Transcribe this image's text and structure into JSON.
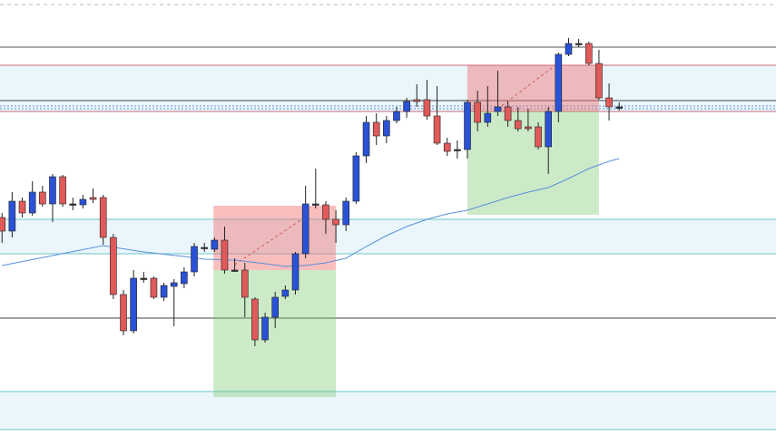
{
  "chart_data": {
    "type": "candlestick",
    "xlim": [
      -0.2,
      76.5
    ],
    "ylim": [
      0,
      480
    ],
    "up_color": "#2a52d6",
    "down_color": "#e05a5a",
    "flat_color": "#333333",
    "series": [
      {
        "name": "open",
        "values": [
          240,
          225,
          258,
          245,
          268,
          255,
          285,
          255,
          254,
          262,
          262,
          218,
          155,
          115,
          173,
          173,
          152,
          164,
          167,
          180,
          207,
          205,
          215,
          182,
          182,
          150,
          105,
          130,
          153,
          160,
          200,
          255,
          254,
          238,
          232,
          258,
          308,
          345,
          330,
          347,
          357,
          370,
          370,
          352,
          322,
          315,
          315,
          367,
          345,
          357,
          362,
          347,
          340,
          340,
          318,
          357,
          420,
          432,
          432,
          410,
          372,
          362
        ]
      },
      {
        "name": "high",
        "values": [
          245,
          268,
          262,
          280,
          275,
          288,
          287,
          262,
          265,
          272,
          265,
          222,
          160,
          182,
          180,
          175,
          168,
          172,
          185,
          212,
          212,
          218,
          230,
          195,
          190,
          152,
          135,
          158,
          165,
          202,
          275,
          294,
          258,
          248,
          262,
          312,
          352,
          355,
          352,
          362,
          372,
          387,
          392,
          385,
          328,
          325,
          370,
          380,
          385,
          402,
          368,
          362,
          360,
          345,
          362,
          422,
          438,
          437,
          434,
          425,
          388,
          367
        ]
      },
      {
        "name": "low",
        "values": [
          212,
          218,
          240,
          242,
          252,
          235,
          252,
          248,
          250,
          256,
          210,
          150,
          110,
          112,
          168,
          150,
          148,
          120,
          162,
          175,
          202,
          202,
          178,
          180,
          130,
          98,
          102,
          118,
          150,
          155,
          195,
          250,
          222,
          212,
          225,
          255,
          300,
          320,
          322,
          344,
          350,
          362,
          348,
          320,
          308,
          305,
          305,
          335,
          340,
          352,
          340,
          335,
          335,
          315,
          288,
          345,
          418,
          428,
          408,
          370,
          347,
          358
        ]
      },
      {
        "name": "close",
        "values": [
          225,
          258,
          245,
          268,
          255,
          285,
          255,
          254,
          260,
          260,
          218,
          155,
          115,
          173,
          172,
          152,
          165,
          168,
          180,
          208,
          206,
          215,
          182,
          182,
          152,
          105,
          130,
          152,
          160,
          200,
          255,
          254,
          238,
          232,
          258,
          308,
          345,
          330,
          347,
          357,
          368,
          368,
          352,
          322,
          313,
          314,
          367,
          345,
          355,
          362,
          347,
          338,
          338,
          318,
          357,
          420,
          432,
          431,
          410,
          372,
          362,
          361
        ]
      }
    ],
    "ma": {
      "color": "#5b8fd9",
      "x": [
        0,
        5,
        10,
        14,
        18,
        20,
        23,
        26,
        28,
        30,
        32,
        34,
        36,
        38,
        40,
        42,
        44,
        46,
        48,
        50,
        52,
        54,
        56,
        58,
        60,
        61
      ],
      "values": [
        187,
        198,
        209,
        202,
        197,
        194,
        193,
        189,
        186,
        187,
        190,
        195,
        208,
        220,
        230,
        238,
        244,
        248,
        255,
        262,
        268,
        273,
        283,
        294,
        302,
        305
      ]
    },
    "bands": [
      {
        "color": "#eaf6fc",
        "range": [
          357,
          408
        ]
      },
      {
        "color": "#eaf6fc",
        "range": [
          200,
          238
        ]
      },
      {
        "color": "#eaf6fc",
        "range": [
          6,
          48
        ]
      }
    ],
    "levels": [
      {
        "value": 475,
        "color": "#bbbbbb",
        "dash": "4 4"
      },
      {
        "value": 428,
        "color": "#555555",
        "dash": "none"
      },
      {
        "value": 408,
        "color": "#c86a7a",
        "dash": "none"
      },
      {
        "value": 369,
        "color": "#444444",
        "dash": "none"
      },
      {
        "value": 363,
        "color": "#5b8fd9",
        "dash": "2 2"
      },
      {
        "value": 360,
        "color": "#5b8fd9",
        "dash": "2 2"
      },
      {
        "value": 357,
        "color": "#c86a7a",
        "dash": "none"
      },
      {
        "value": 238,
        "color": "#6cc6c6",
        "dash": "none"
      },
      {
        "value": 200,
        "color": "#6cc6c6",
        "dash": "none"
      },
      {
        "value": 129,
        "color": "#444444",
        "dash": "none"
      },
      {
        "value": 48,
        "color": "#6cc6c6",
        "dash": "none"
      },
      {
        "value": 6,
        "color": "#6cc6c6",
        "dash": "none"
      }
    ],
    "positions": [
      {
        "x": [
          20.9,
          33.0
        ],
        "entry": 182,
        "stop": 253,
        "target": 42,
        "path_x": [
          23.0,
          30.3
        ],
        "path_y": [
          188,
          243
        ]
      },
      {
        "x": [
          46.0,
          59.0
        ],
        "entry": 357,
        "stop": 408,
        "target": 243,
        "path_x": [
          49.0,
          54.7
        ],
        "path_y": [
          360,
          408
        ]
      }
    ]
  }
}
